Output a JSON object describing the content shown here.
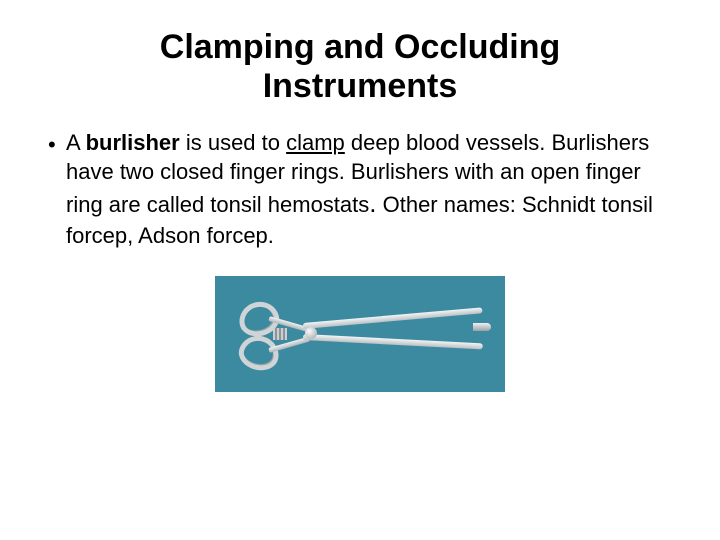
{
  "title_line1": "Clamping and Occluding",
  "title_line2": "Instruments",
  "bullet": {
    "pre": "A ",
    "bold": "burlisher",
    "mid": " is used to ",
    "underlined": "clamp",
    "post1": " deep blood vessels. Burlishers have two closed finger rings.  Burlishers with an open finger ring are called tonsil hemostats",
    "period": ".",
    "post2": " Other names: Schnidt tonsil forcep, Adson forcep."
  },
  "figure": {
    "bg_color": "#3b8aa0",
    "metal_light": "#f3f5f6",
    "metal_dark": "#b9c0c4"
  }
}
